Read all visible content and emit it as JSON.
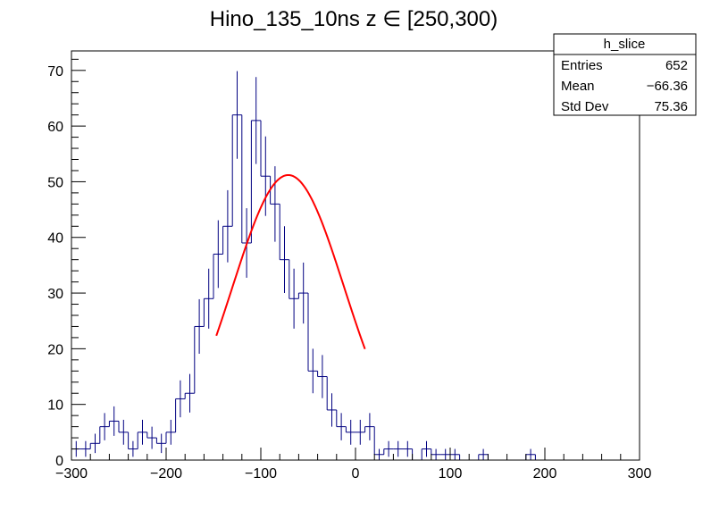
{
  "chart_data": {
    "type": "histogram",
    "title": "Hino_135_10ns z  ∈ [250,300)",
    "xlim": [
      -300,
      300
    ],
    "ylim": [
      0,
      73.5
    ],
    "x_ticks": [
      -300,
      -200,
      -100,
      0,
      100,
      200,
      300
    ],
    "x_tick_labels": [
      "−300",
      "−200",
      "−100",
      "0",
      "100",
      "200",
      "300"
    ],
    "y_ticks": [
      0,
      10,
      20,
      30,
      40,
      50,
      60,
      70
    ],
    "y_tick_labels": [
      "0",
      "10",
      "20",
      "30",
      "40",
      "50",
      "60",
      "70"
    ],
    "grid": false,
    "bin_width": 10,
    "bin_start": -300,
    "values": [
      2,
      2,
      3,
      6,
      7,
      5,
      2,
      5,
      4,
      3,
      5,
      11,
      12,
      24,
      29,
      37,
      42,
      62,
      39,
      61,
      51,
      46,
      36,
      29,
      30,
      16,
      15,
      9,
      6,
      5,
      5,
      6,
      1,
      2,
      2,
      2,
      0,
      2,
      1,
      1,
      1,
      0,
      0,
      1,
      0,
      0,
      0,
      0,
      1,
      0
    ],
    "histogram_color": "#000080",
    "fit": {
      "type": "gaus",
      "constant": 51.2,
      "mean": -71,
      "sigma": 59,
      "range": [
        -147,
        10
      ],
      "color": "#ff0000"
    },
    "stats_box": {
      "name": "h_slice",
      "rows": [
        {
          "label": "Entries",
          "value": "652"
        },
        {
          "label": "Mean",
          "value": "−66.36"
        },
        {
          "label": "Std Dev",
          "value": "75.36"
        }
      ]
    }
  }
}
